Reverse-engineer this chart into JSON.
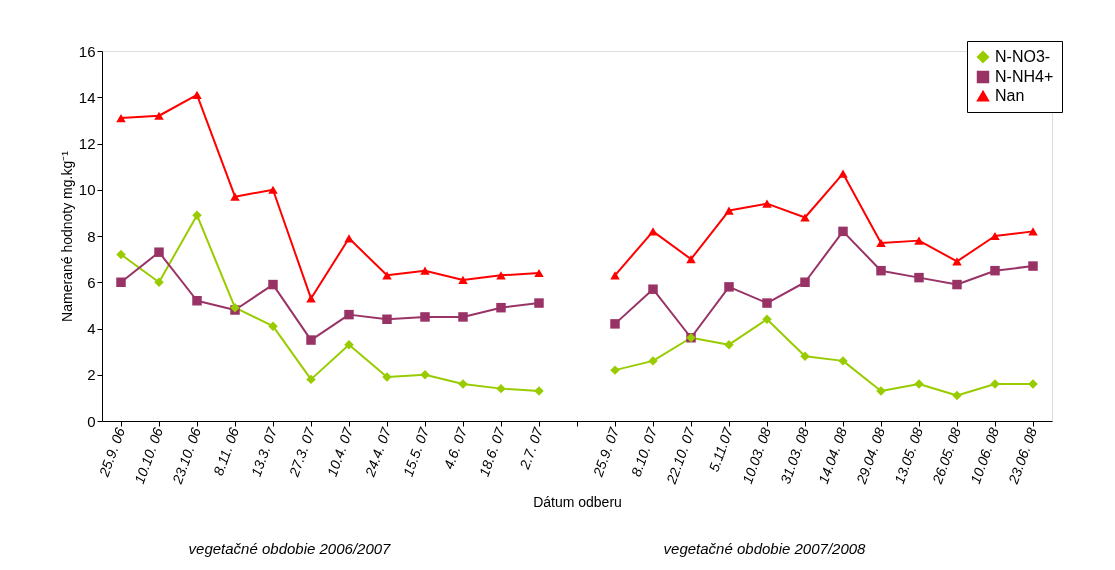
{
  "chart_data": {
    "type": "line",
    "xlabel": "Dátum odberu",
    "ylabel": "Namerané hodnoty mg.kg⁻¹",
    "categories": [
      "25.9. 06",
      "10.10. 06",
      "23.10. 06",
      "8.11. 06",
      "13.3. 07",
      "27.3. 07",
      "10.4. 07",
      "24.4. 07",
      "15.5. 07",
      "4.6. 07",
      "18.6. 07",
      "2.7. 07",
      null,
      "25.9. 07",
      "8.10. 07",
      "22.10. 07",
      "5.11.07",
      "10.03. 08",
      "31.03. 08",
      "14.04. 08",
      "29.04. 08",
      "13.05. 08",
      "26.05. 08",
      "10.06. 08",
      "23.06. 08"
    ],
    "series": [
      {
        "name": "N-NO3-",
        "color": "#99cc00",
        "marker": "diamond",
        "values": [
          7.2,
          6.0,
          8.9,
          4.9,
          4.1,
          1.8,
          3.3,
          1.9,
          2.0,
          1.6,
          1.4,
          1.3,
          null,
          2.2,
          2.6,
          3.6,
          3.3,
          4.4,
          2.8,
          2.6,
          1.3,
          1.6,
          1.1,
          1.6,
          1.6
        ]
      },
      {
        "name": "N-NH4+",
        "color": "#993366",
        "marker": "square",
        "values": [
          6.0,
          7.3,
          5.2,
          4.8,
          5.9,
          3.5,
          4.6,
          4.4,
          4.5,
          4.5,
          4.9,
          5.1,
          null,
          4.2,
          5.7,
          3.6,
          5.8,
          5.1,
          6.0,
          8.2,
          6.5,
          6.2,
          5.9,
          6.5,
          6.7
        ]
      },
      {
        "name": "Nan",
        "color": "#ff0000",
        "marker": "triangle",
        "values": [
          13.1,
          13.2,
          14.1,
          9.7,
          10.0,
          5.3,
          7.9,
          6.3,
          6.5,
          6.1,
          6.3,
          6.4,
          null,
          6.3,
          8.2,
          7.0,
          9.1,
          9.4,
          8.8,
          10.7,
          7.7,
          7.8,
          6.9,
          8.0,
          8.2
        ]
      }
    ],
    "ylim": [
      0,
      16
    ],
    "yticks": [
      0,
      2,
      4,
      6,
      8,
      10,
      12,
      14,
      16
    ],
    "grid": false,
    "legend": "top right",
    "annotations": [
      "vegetačné obdobie 2006/2007",
      "vegetačné obdobie 2007/2008"
    ]
  }
}
